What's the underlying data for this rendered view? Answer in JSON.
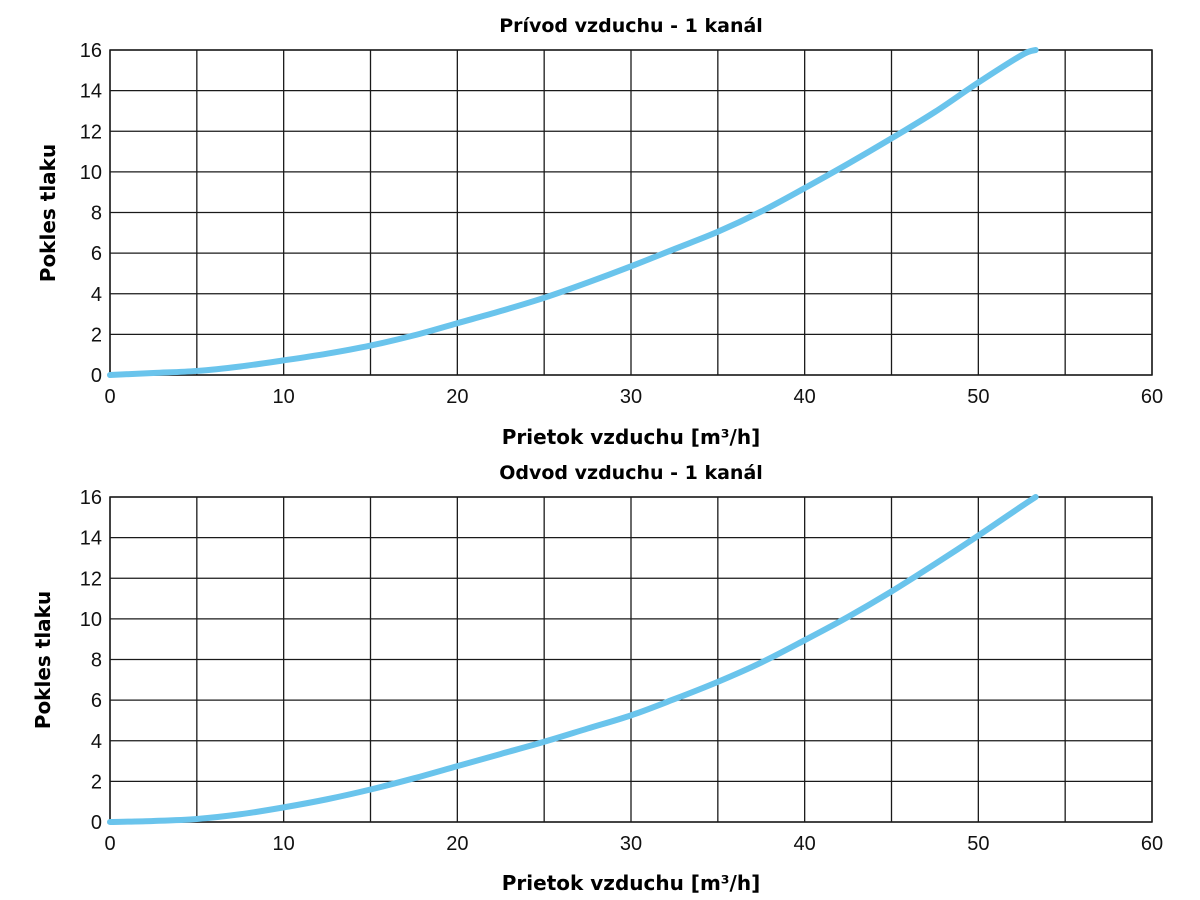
{
  "chart_data": [
    {
      "type": "line",
      "title": "Prívod vzduchu - 1 kanál",
      "xlabel": "Prietok vzduchu [m³/h]",
      "ylabel": "Pokles tlaku",
      "xlim": [
        0,
        60
      ],
      "ylim": [
        0,
        16
      ],
      "xticks": [
        0,
        10,
        20,
        30,
        40,
        50,
        60
      ],
      "yticks": [
        0,
        2,
        4,
        6,
        8,
        10,
        12,
        14,
        16
      ],
      "grid_x_step": 5,
      "grid_y_step": 2,
      "grid": true,
      "line_color": "#6ac4ec",
      "series": [
        {
          "x": [
            0,
            2.5,
            5,
            7.5,
            10,
            12.5,
            15,
            17.5,
            20,
            22.5,
            25,
            27.5,
            30,
            32.5,
            35,
            37.5,
            40,
            42.5,
            45,
            47.5,
            50,
            52.5,
            53.3
          ],
          "y": [
            0,
            0.1,
            0.2,
            0.42,
            0.72,
            1.05,
            1.45,
            1.95,
            2.55,
            3.15,
            3.8,
            4.55,
            5.35,
            6.2,
            7.05,
            8.05,
            9.2,
            10.4,
            11.65,
            12.95,
            14.4,
            15.75,
            16.0
          ]
        }
      ]
    },
    {
      "type": "line",
      "title": "Odvod vzduchu - 1 kanál",
      "xlabel": "Prietok vzduchu [m³/h]",
      "ylabel": "Pokles tlaku",
      "xlim": [
        0,
        60
      ],
      "ylim": [
        0,
        16
      ],
      "xticks": [
        0,
        10,
        20,
        30,
        40,
        50,
        60
      ],
      "yticks": [
        0,
        2,
        4,
        6,
        8,
        10,
        12,
        14,
        16
      ],
      "grid_x_step": 5,
      "grid_y_step": 2,
      "grid": true,
      "line_color": "#6ac4ec",
      "series": [
        {
          "x": [
            0,
            2.5,
            5,
            7.5,
            10,
            12.5,
            15,
            17.5,
            20,
            22.5,
            25,
            27.5,
            30,
            32.5,
            35,
            37.5,
            40,
            42.5,
            45,
            47.5,
            50,
            52.5,
            53.3
          ],
          "y": [
            0,
            0.05,
            0.15,
            0.38,
            0.72,
            1.12,
            1.6,
            2.15,
            2.75,
            3.35,
            3.95,
            4.6,
            5.25,
            6.05,
            6.9,
            7.85,
            8.95,
            10.1,
            11.35,
            12.7,
            14.1,
            15.55,
            16.0
          ]
        }
      ]
    }
  ]
}
